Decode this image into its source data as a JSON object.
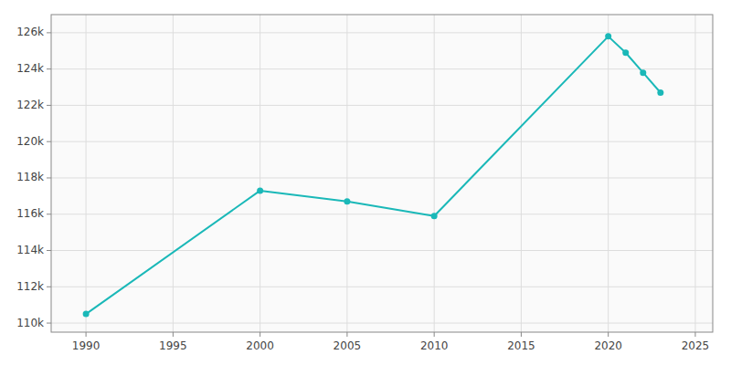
{
  "chart_data": {
    "type": "line",
    "x": [
      1990,
      2000,
      2005,
      2010,
      2020,
      2021,
      2022,
      2023
    ],
    "values": [
      110500,
      117300,
      116700,
      115900,
      125800,
      124900,
      123800,
      122700
    ],
    "color": "#1ab8b8",
    "marker": "circle",
    "line_style": "solid",
    "xlim": [
      1988,
      2026
    ],
    "ylim": [
      109500,
      127000
    ],
    "xticks": [
      1990,
      1995,
      2000,
      2005,
      2010,
      2015,
      2020,
      2025
    ],
    "yticks": [
      {
        "value": 110000,
        "label": "110k"
      },
      {
        "value": 112000,
        "label": "112k"
      },
      {
        "value": 114000,
        "label": "114k"
      },
      {
        "value": 116000,
        "label": "116k"
      },
      {
        "value": 118000,
        "label": "118k"
      },
      {
        "value": 120000,
        "label": "120k"
      },
      {
        "value": 122000,
        "label": "122k"
      },
      {
        "value": 124000,
        "label": "124k"
      },
      {
        "value": 126000,
        "label": "126k"
      }
    ],
    "grid": true
  }
}
